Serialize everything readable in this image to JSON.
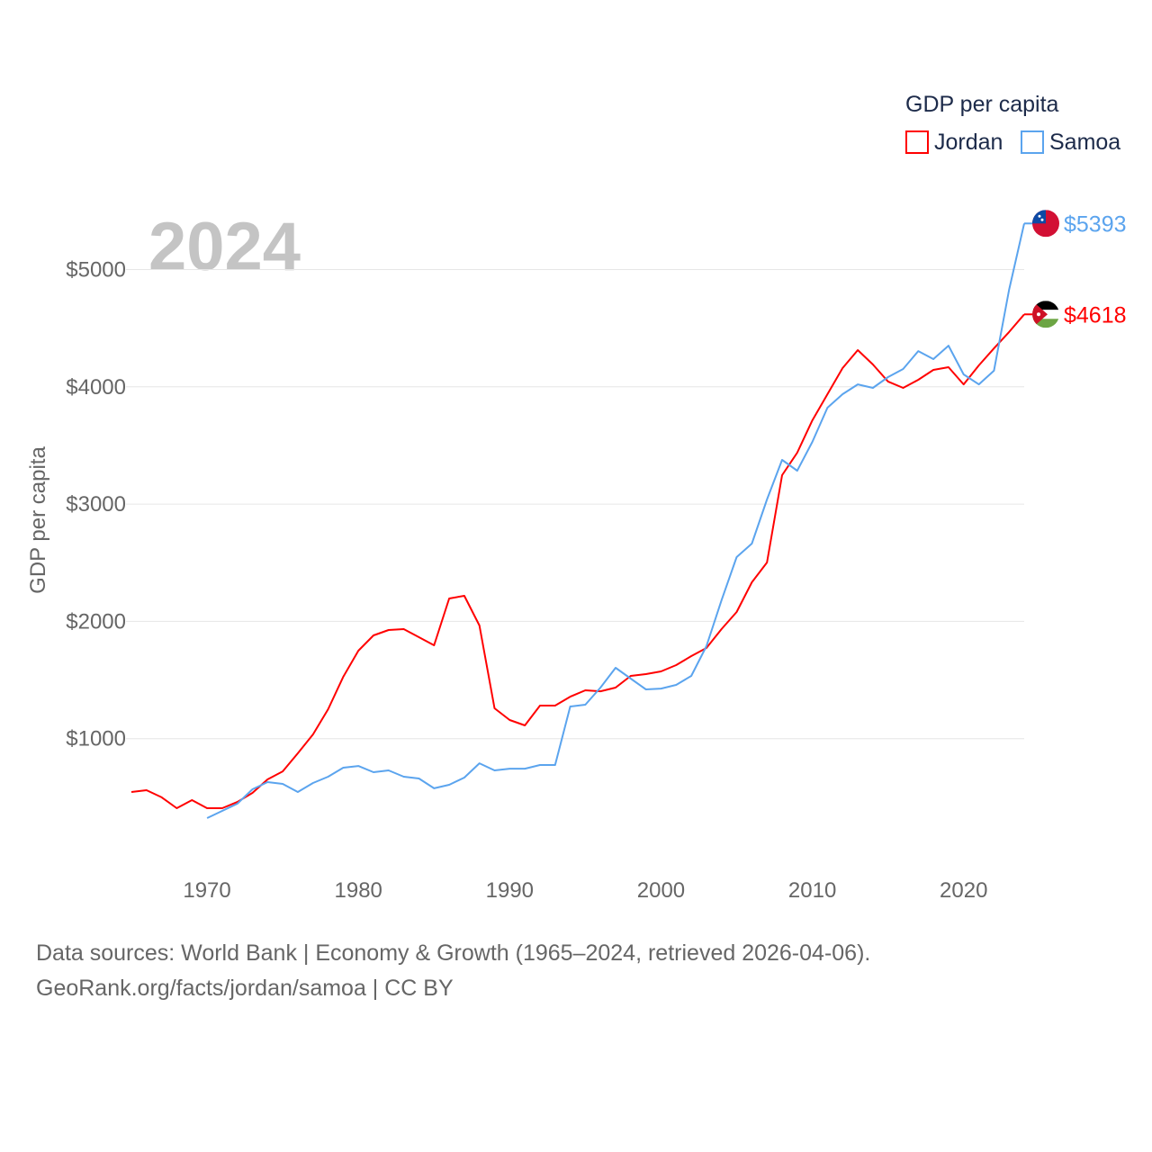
{
  "chart_data": {
    "type": "line",
    "title": "GDP per capita",
    "ylabel": "GDP per capita",
    "xlabel": "",
    "year_watermark": "2024",
    "xlim": [
      1965,
      2024
    ],
    "ylim": [
      0,
      5600
    ],
    "x_ticks": [
      1970,
      1980,
      1990,
      2000,
      2010,
      2020
    ],
    "y_ticks": [
      1000,
      2000,
      3000,
      4000,
      5000
    ],
    "y_tick_labels": [
      "$1000",
      "$2000",
      "$3000",
      "$4000",
      "$5000"
    ],
    "grid": "horizontal",
    "legend_placement": "top-right",
    "series": [
      {
        "name": "Jordan",
        "color": "#ff0000",
        "start_year": 1965,
        "end_label": "$4618",
        "values": [
          545,
          560,
          500,
          407,
          476,
          407,
          407,
          460,
          537,
          652,
          721,
          875,
          1036,
          1251,
          1527,
          1750,
          1880,
          1926,
          1934,
          1865,
          1796,
          2195,
          2218,
          1965,
          1259,
          1159,
          1113,
          1282,
          1282,
          1358,
          1412,
          1404,
          1435,
          1535,
          1550,
          1573,
          1627,
          1704,
          1773,
          1934,
          2080,
          2333,
          2502,
          3246,
          3438,
          3714,
          3937,
          4160,
          4313,
          4190,
          4045,
          3991,
          4060,
          4144,
          4167,
          4021,
          4183,
          4328,
          4467,
          4618
        ]
      },
      {
        "name": "Samoa",
        "color": "#5ba4ee",
        "start_year": 1970,
        "end_label": "$5393",
        "values": [
          322,
          384,
          445,
          568,
          629,
          614,
          545,
          622,
          675,
          752,
          767,
          714,
          729,
          675,
          660,
          576,
          606,
          668,
          790,
          729,
          744,
          744,
          775,
          775,
          1274,
          1289,
          1435,
          1604,
          1512,
          1420,
          1427,
          1458,
          1535,
          1788,
          2180,
          2548,
          2663,
          3039,
          3377,
          3285,
          3530,
          3822,
          3937,
          4021,
          3991,
          4083,
          4152,
          4305,
          4236,
          4351,
          4106,
          4021,
          4137,
          4827,
          5393
        ]
      }
    ]
  },
  "footer": {
    "line1": "Data sources: World Bank | Economy & Growth (1965–2024, retrieved 2026-04-06).",
    "line2": "GeoRank.org/facts/jordan/samoa | CC BY"
  }
}
